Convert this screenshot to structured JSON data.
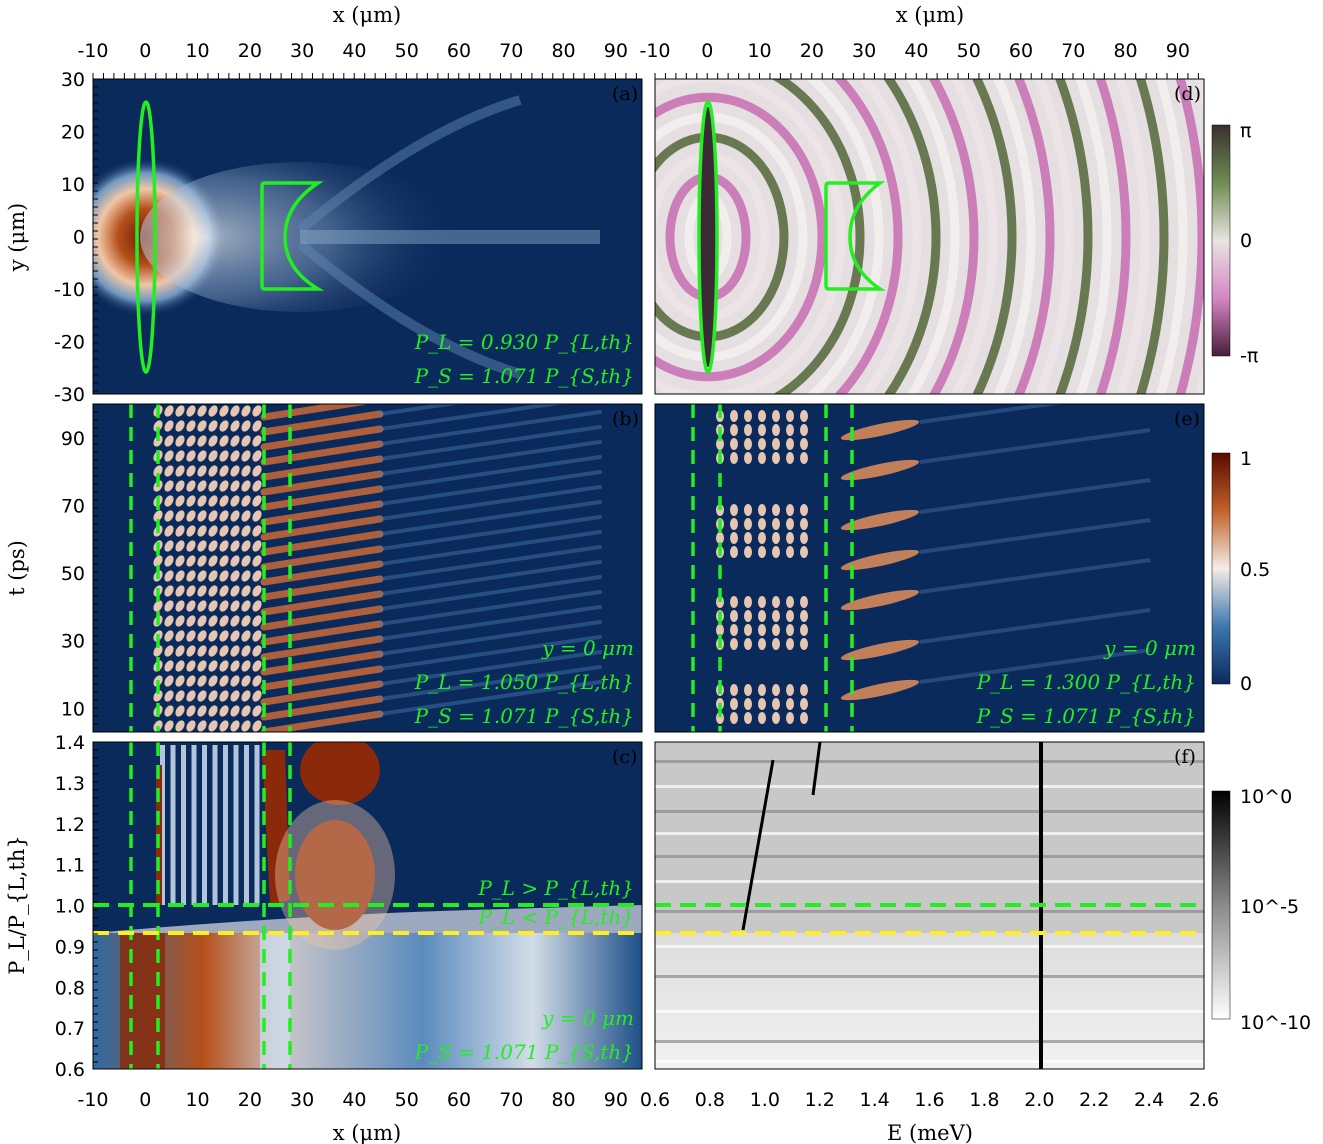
{
  "figure": {
    "top_axis_label": "x (μm)",
    "bottom_axis_label_left": "x (μm)",
    "bottom_axis_label_right": "E (meV)",
    "ylabel_top": "y (μm)",
    "ylabel_mid": "t (ps)",
    "ylabel_bottom": "P_L/P_{L,th}",
    "x_ticks": [
      "-10",
      "0",
      "10",
      "20",
      "30",
      "40",
      "50",
      "60",
      "70",
      "80",
      "90"
    ],
    "E_ticks": [
      "0.6",
      "0.8",
      "1.0",
      "1.2",
      "1.4",
      "1.6",
      "1.8",
      "2.0",
      "2.2",
      "2.4",
      "2.6"
    ],
    "y_ticks_a": [
      "30",
      "20",
      "10",
      "0",
      "-10",
      "-20",
      "-30"
    ],
    "t_ticks": [
      "90",
      "70",
      "50",
      "30",
      "10"
    ],
    "p_ticks": [
      "1.4",
      "1.3",
      "1.2",
      "1.1",
      "1.0",
      "0.9",
      "0.8",
      "0.7",
      "0.6"
    ],
    "colorbar_phase": [
      "π",
      "0",
      "-π"
    ],
    "colorbar_density": [
      "1",
      "0.5",
      "0"
    ],
    "colorbar_spectrum": [
      "10^0",
      "10^-5",
      "10^-10"
    ]
  },
  "panels": {
    "a": {
      "label": "(a)",
      "ann": [
        "P_L = 0.930 P_{L,th}",
        "P_S = 1.071 P_{S,th}"
      ]
    },
    "b": {
      "label": "(b)",
      "ann": [
        "y = 0 μm",
        "P_L = 1.050 P_{L,th}",
        "P_S = 1.071 P_{S,th}"
      ]
    },
    "c": {
      "label": "(c)",
      "ann": [
        "y = 0 μm",
        "P_S = 1.071 P_{S,th}"
      ],
      "threshold_labels": [
        "P_L > P_{L,th}",
        "P_L < P_{L,th}"
      ]
    },
    "d": {
      "label": "(d)"
    },
    "e": {
      "label": "(e)",
      "ann": [
        "y = 0 μm",
        "P_L = 1.300 P_{L,th}",
        "P_S = 1.071 P_{S,th}"
      ]
    },
    "f": {
      "label": "(f)"
    }
  },
  "chart_data": [
    {
      "type": "heatmap",
      "panel": "a",
      "x_range": [
        -10,
        95
      ],
      "y_range": [
        -30,
        30
      ],
      "xlabel": "x (μm)",
      "ylabel": "y (μm)",
      "colorbar": "density 0–1"
    },
    {
      "type": "heatmap",
      "panel": "b",
      "x_range": [
        -10,
        95
      ],
      "y_range": [
        3,
        100
      ],
      "ylabel": "t (ps)",
      "dashed_lines_x": [
        -2.5,
        2.5,
        22.5,
        27.5
      ]
    },
    {
      "type": "heatmap",
      "panel": "c",
      "x_range": [
        -10,
        95
      ],
      "y_range": [
        0.6,
        1.4
      ],
      "xlabel": "x (μm)",
      "ylabel": "P_L/P_{L,th}",
      "hline_green": 1.0,
      "hline_yellow": 0.93
    },
    {
      "type": "heatmap",
      "panel": "d",
      "x_range": [
        -10,
        95
      ],
      "y_range": [
        -30,
        30
      ],
      "colorbar": "phase -π to π"
    },
    {
      "type": "heatmap",
      "panel": "e",
      "x_range": [
        -10,
        95
      ],
      "y_range": [
        3,
        100
      ]
    },
    {
      "type": "heatmap",
      "panel": "f",
      "x_range": [
        0.6,
        2.6
      ],
      "y_range": [
        0.6,
        1.4
      ],
      "xlabel": "E (meV)",
      "colorbar": "10^-10 to 10^0 (log)",
      "hline_green": 1.0,
      "hline_yellow": 0.93
    }
  ]
}
